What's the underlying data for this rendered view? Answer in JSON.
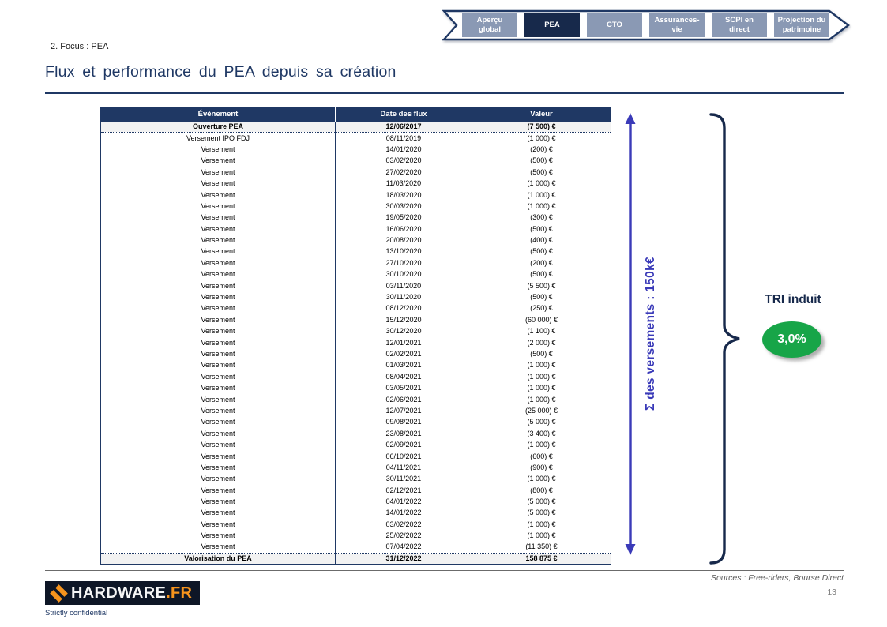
{
  "slide": {
    "section_label": "2. Focus : PEA",
    "title": "Flux et performance du PEA depuis sa création"
  },
  "nav": {
    "tabs": [
      {
        "label": "Aperçu\nglobal",
        "active": false
      },
      {
        "label": "PEA",
        "active": true
      },
      {
        "label": "CTO",
        "active": false
      },
      {
        "label": "Assurances-\nvie",
        "active": false
      },
      {
        "label": "SCPI en\ndirect",
        "active": false
      },
      {
        "label": "Projection du\npatrimoine",
        "active": false
      }
    ]
  },
  "table": {
    "headers": [
      "Évènement",
      "Date des flux",
      "Valeur"
    ],
    "rows": [
      {
        "event": "Ouverture PEA",
        "date": "12/06/2017",
        "value": "(7 500) €",
        "emphasis": true
      },
      {
        "event": "Versement IPO FDJ",
        "date": "08/11/2019",
        "value": "(1 000) €",
        "emphasis": false
      },
      {
        "event": "Versement",
        "date": "14/01/2020",
        "value": "(200) €",
        "emphasis": false
      },
      {
        "event": "Versement",
        "date": "03/02/2020",
        "value": "(500) €",
        "emphasis": false
      },
      {
        "event": "Versement",
        "date": "27/02/2020",
        "value": "(500) €",
        "emphasis": false
      },
      {
        "event": "Versement",
        "date": "11/03/2020",
        "value": "(1 000) €",
        "emphasis": false
      },
      {
        "event": "Versement",
        "date": "18/03/2020",
        "value": "(1 000) €",
        "emphasis": false
      },
      {
        "event": "Versement",
        "date": "30/03/2020",
        "value": "(1 000) €",
        "emphasis": false
      },
      {
        "event": "Versement",
        "date": "19/05/2020",
        "value": "(300) €",
        "emphasis": false
      },
      {
        "event": "Versement",
        "date": "16/06/2020",
        "value": "(500) €",
        "emphasis": false
      },
      {
        "event": "Versement",
        "date": "20/08/2020",
        "value": "(400) €",
        "emphasis": false
      },
      {
        "event": "Versement",
        "date": "13/10/2020",
        "value": "(500) €",
        "emphasis": false
      },
      {
        "event": "Versement",
        "date": "27/10/2020",
        "value": "(200) €",
        "emphasis": false
      },
      {
        "event": "Versement",
        "date": "30/10/2020",
        "value": "(500) €",
        "emphasis": false
      },
      {
        "event": "Versement",
        "date": "03/11/2020",
        "value": "(5 500) €",
        "emphasis": false
      },
      {
        "event": "Versement",
        "date": "30/11/2020",
        "value": "(500) €",
        "emphasis": false
      },
      {
        "event": "Versement",
        "date": "08/12/2020",
        "value": "(250) €",
        "emphasis": false
      },
      {
        "event": "Versement",
        "date": "15/12/2020",
        "value": "(60 000) €",
        "emphasis": false
      },
      {
        "event": "Versement",
        "date": "30/12/2020",
        "value": "(1 100) €",
        "emphasis": false
      },
      {
        "event": "Versement",
        "date": "12/01/2021",
        "value": "(2 000) €",
        "emphasis": false
      },
      {
        "event": "Versement",
        "date": "02/02/2021",
        "value": "(500) €",
        "emphasis": false
      },
      {
        "event": "Versement",
        "date": "01/03/2021",
        "value": "(1 000) €",
        "emphasis": false
      },
      {
        "event": "Versement",
        "date": "08/04/2021",
        "value": "(1 000) €",
        "emphasis": false
      },
      {
        "event": "Versement",
        "date": "03/05/2021",
        "value": "(1 000) €",
        "emphasis": false
      },
      {
        "event": "Versement",
        "date": "02/06/2021",
        "value": "(1 000) €",
        "emphasis": false
      },
      {
        "event": "Versement",
        "date": "12/07/2021",
        "value": "(25 000) €",
        "emphasis": false
      },
      {
        "event": "Versement",
        "date": "09/08/2021",
        "value": "(5 000) €",
        "emphasis": false
      },
      {
        "event": "Versement",
        "date": "23/08/2021",
        "value": "(3 400) €",
        "emphasis": false
      },
      {
        "event": "Versement",
        "date": "02/09/2021",
        "value": "(1 000) €",
        "emphasis": false
      },
      {
        "event": "Versement",
        "date": "06/10/2021",
        "value": "(600) €",
        "emphasis": false
      },
      {
        "event": "Versement",
        "date": "04/11/2021",
        "value": "(900) €",
        "emphasis": false
      },
      {
        "event": "Versement",
        "date": "30/11/2021",
        "value": "(1 000) €",
        "emphasis": false
      },
      {
        "event": "Versement",
        "date": "02/12/2021",
        "value": "(800) €",
        "emphasis": false
      },
      {
        "event": "Versement",
        "date": "04/01/2022",
        "value": "(5 000) €",
        "emphasis": false
      },
      {
        "event": "Versement",
        "date": "14/01/2022",
        "value": "(5 000) €",
        "emphasis": false
      },
      {
        "event": "Versement",
        "date": "03/02/2022",
        "value": "(1 000) €",
        "emphasis": false
      },
      {
        "event": "Versement",
        "date": "25/02/2022",
        "value": "(1 000) €",
        "emphasis": false
      },
      {
        "event": "Versement",
        "date": "07/04/2022",
        "value": "(11 350) €",
        "emphasis": false
      },
      {
        "event": "Valorisation du PEA",
        "date": "31/12/2022",
        "value": "158 875 €",
        "emphasis": true
      }
    ]
  },
  "annotations": {
    "sum_label": "Σ des versements : 150k€",
    "tri_label": "TRI induit",
    "tri_value": "3,0%"
  },
  "footer": {
    "sources": "Sources : Free-riders, Bourse Direct",
    "page_number": "13",
    "confidential": "Strictly confidential",
    "logo_text_main": "HARDWARE",
    "logo_text_suffix": ".FR"
  },
  "colors": {
    "navy": "#1F3864",
    "tab_inactive": "#8A99B4",
    "tab_active": "#17294B",
    "accent_purple": "#3A3AB8",
    "green": "#17A548",
    "logo_orange": "#F7941D"
  }
}
